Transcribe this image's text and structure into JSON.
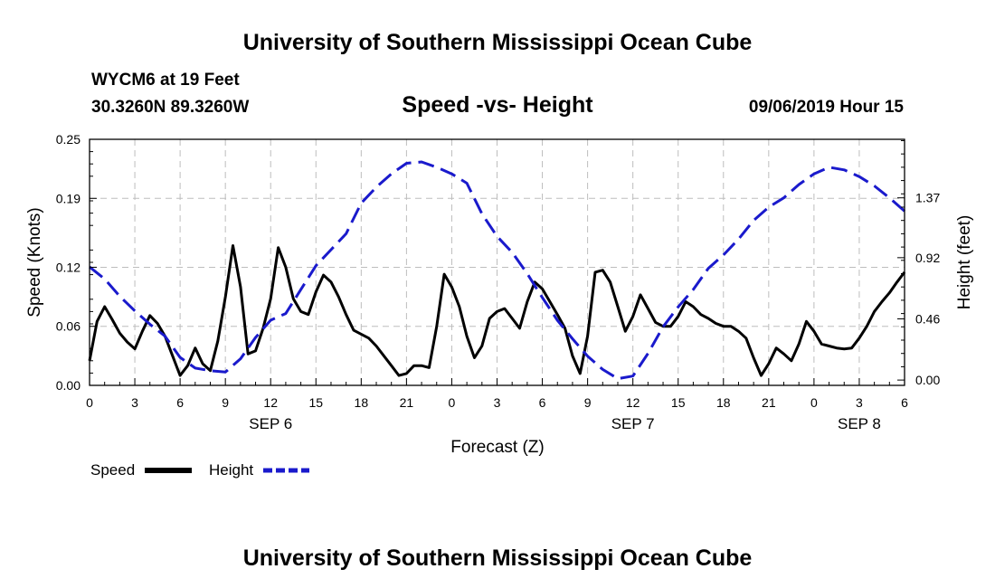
{
  "chart_data": {
    "type": "line",
    "title": "University of Southern Mississippi Ocean Cube",
    "footer_title": "University of Southern Mississippi Ocean Cube",
    "subtitle": "Speed -vs- Height",
    "station": "WYCM6 at 19 Feet",
    "location": "30.3260N 89.3260W",
    "datetime": "09/06/2019 Hour 15",
    "xlabel": "Forecast (Z)",
    "ylabel_left": "Speed (Knots)",
    "ylabel_right": "Height (feet)",
    "x_range_hours": [
      0,
      54
    ],
    "ylim_left": [
      0,
      0.25
    ],
    "ylim_right": [
      -0.04,
      1.81
    ],
    "x_tick_labels": [
      "0",
      "3",
      "6",
      "9",
      "12",
      "15",
      "18",
      "21",
      "0",
      "3",
      "6",
      "9",
      "12",
      "15",
      "18",
      "21",
      "0",
      "3",
      "6"
    ],
    "left_tick_values": [
      0,
      0.06,
      0.12,
      0.19,
      0.25
    ],
    "left_tick_labels": [
      "0.00",
      "0.06",
      "0.12",
      "0.19",
      "0.25"
    ],
    "right_tick_values": [
      0,
      0.46,
      0.92,
      1.37
    ],
    "right_tick_labels": [
      "0.00",
      "0.46",
      "0.92",
      "1.37"
    ],
    "date_labels": [
      {
        "label": "SEP 6",
        "hour": 12
      },
      {
        "label": "SEP 7",
        "hour": 36
      },
      {
        "label": "SEP 8",
        "hour": 51
      }
    ],
    "legend": [
      {
        "name": "Speed",
        "color": "#000000",
        "style": "solid"
      },
      {
        "name": "Height",
        "color": "#1a1acc",
        "style": "dashed"
      }
    ],
    "series": [
      {
        "name": "Speed",
        "axis": "left",
        "color": "#000000",
        "x": [
          0,
          0.5,
          1,
          1.5,
          2,
          2.5,
          3,
          3.5,
          4,
          4.5,
          5,
          5.5,
          6,
          6.5,
          7,
          7.5,
          8,
          8.5,
          9,
          9.5,
          10,
          10.5,
          11,
          11.5,
          12,
          12.5,
          13,
          13.5,
          14,
          14.5,
          15,
          15.5,
          16,
          16.5,
          17,
          17.5,
          18,
          18.5,
          19,
          19.5,
          20,
          20.5,
          21,
          21.5,
          22,
          22.5,
          23,
          23.5,
          24,
          24.5,
          25,
          25.5,
          26,
          26.5,
          27,
          27.5,
          28,
          28.5,
          29,
          29.5,
          30,
          30.5,
          31,
          31.5,
          32,
          32.5,
          33,
          33.5,
          34,
          34.5,
          35,
          35.5,
          36,
          36.5,
          37,
          37.5,
          38,
          38.5,
          39,
          39.5,
          40,
          40.5,
          41,
          41.5,
          42,
          42.5,
          43,
          43.5,
          44,
          44.5,
          45,
          45.5,
          46,
          46.5,
          47,
          47.5,
          48,
          48.5,
          49,
          49.5,
          50,
          50.5,
          51,
          51.5,
          52,
          52.5,
          53,
          53.5,
          54
        ],
        "values": [
          0.025,
          0.065,
          0.08,
          0.067,
          0.053,
          0.044,
          0.037,
          0.055,
          0.071,
          0.063,
          0.05,
          0.03,
          0.01,
          0.02,
          0.038,
          0.022,
          0.015,
          0.045,
          0.09,
          0.142,
          0.1,
          0.032,
          0.035,
          0.058,
          0.088,
          0.14,
          0.12,
          0.088,
          0.075,
          0.072,
          0.095,
          0.112,
          0.105,
          0.09,
          0.072,
          0.056,
          0.052,
          0.048,
          0.04,
          0.03,
          0.02,
          0.01,
          0.012,
          0.02,
          0.02,
          0.018,
          0.06,
          0.113,
          0.1,
          0.08,
          0.05,
          0.028,
          0.04,
          0.068,
          0.075,
          0.078,
          0.068,
          0.058,
          0.085,
          0.105,
          0.098,
          0.085,
          0.072,
          0.058,
          0.03,
          0.012,
          0.05,
          0.115,
          0.117,
          0.105,
          0.08,
          0.055,
          0.07,
          0.092,
          0.078,
          0.064,
          0.06,
          0.06,
          0.07,
          0.085,
          0.08,
          0.072,
          0.068,
          0.063,
          0.06,
          0.06,
          0.055,
          0.048,
          0.028,
          0.01,
          0.022,
          0.038,
          0.032,
          0.025,
          0.042,
          0.065,
          0.055,
          0.042,
          0.04,
          0.038,
          0.037,
          0.038,
          0.048,
          0.06,
          0.075,
          0.085,
          0.094,
          0.105,
          0.115
        ]
      },
      {
        "name": "Height",
        "axis": "right",
        "color": "#1a1acc",
        "x": [
          0,
          1,
          2,
          3,
          4,
          5,
          6,
          7,
          8,
          9,
          10,
          11,
          12,
          13,
          14,
          15,
          16,
          17,
          18,
          19,
          20,
          21,
          22,
          23,
          24,
          25,
          26,
          27,
          28,
          29,
          30,
          31,
          32,
          33,
          34,
          35,
          36,
          37,
          38,
          39,
          40,
          41,
          42,
          43,
          44,
          45,
          46,
          47,
          48,
          49,
          50,
          51,
          52,
          53,
          54
        ],
        "values": [
          0.85,
          0.76,
          0.63,
          0.52,
          0.42,
          0.33,
          0.17,
          0.09,
          0.07,
          0.06,
          0.16,
          0.32,
          0.45,
          0.5,
          0.68,
          0.86,
          0.98,
          1.1,
          1.33,
          1.45,
          1.55,
          1.63,
          1.64,
          1.6,
          1.55,
          1.48,
          1.25,
          1.08,
          0.96,
          0.8,
          0.62,
          0.45,
          0.31,
          0.18,
          0.08,
          0.01,
          0.03,
          0.2,
          0.4,
          0.55,
          0.68,
          0.84,
          0.94,
          1.06,
          1.2,
          1.3,
          1.37,
          1.47,
          1.55,
          1.6,
          1.58,
          1.53,
          1.46,
          1.37,
          1.27
        ]
      }
    ]
  }
}
